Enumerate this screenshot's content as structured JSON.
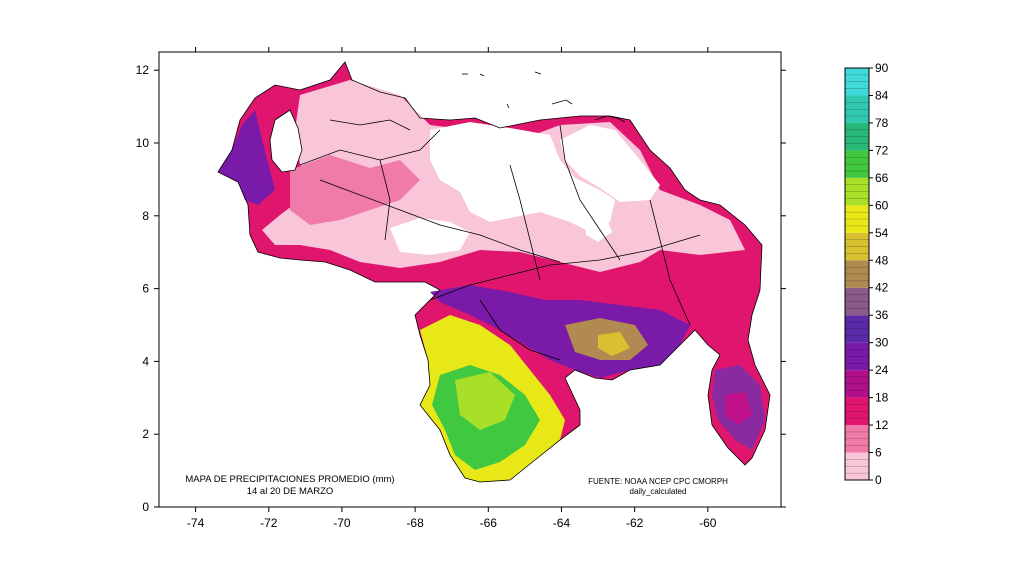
{
  "map": {
    "title_line1": "MAPA DE PRECIPITACIONES PROMEDIO (mm)",
    "title_line2": "14 al 20 DE MARZO",
    "source_line1": "FUENTE: NOAA NCEP CPC CMORPH",
    "source_line2": "daily_calculated"
  },
  "axes": {
    "x_ticks": [
      "-74",
      "-72",
      "-70",
      "-68",
      "-66",
      "-64",
      "-62",
      "-60"
    ],
    "y_ticks": [
      "0",
      "2",
      "4",
      "6",
      "8",
      "10",
      "12"
    ],
    "x_range": [
      -75,
      -58
    ],
    "y_range": [
      0,
      12
    ]
  },
  "colorbar": {
    "labels": [
      "0",
      "6",
      "12",
      "18",
      "24",
      "30",
      "36",
      "42",
      "48",
      "54",
      "60",
      "66",
      "72",
      "78",
      "84",
      "90"
    ],
    "colors": [
      "#ffffff",
      "#f8c6d8",
      "#f07aa8",
      "#e0156e",
      "#b0108a",
      "#7a1aa8",
      "#5a2aa8",
      "#8a5a8a",
      "#b08a50",
      "#d8c030",
      "#e8e818",
      "#a8e028",
      "#40c840",
      "#28b878",
      "#30c8b0",
      "#40d8d8"
    ]
  },
  "regions": [
    {
      "name": "white",
      "color": "#ffffff"
    },
    {
      "name": "light-pink",
      "color": "#f8c6d8"
    },
    {
      "name": "pink",
      "color": "#f07aa8"
    },
    {
      "name": "magenta",
      "color": "#e0156e"
    },
    {
      "name": "purple-magenta",
      "color": "#b0108a"
    },
    {
      "name": "purple",
      "color": "#7a1aa8"
    },
    {
      "name": "yellow",
      "color": "#e8e818"
    },
    {
      "name": "green",
      "color": "#40c840"
    },
    {
      "name": "olive",
      "color": "#c0b040"
    }
  ]
}
